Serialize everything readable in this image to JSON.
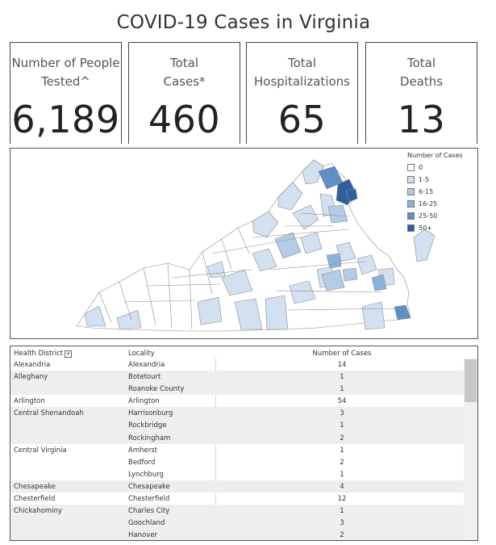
{
  "title": "COVID-19 Cases in Virginia",
  "kpis": [
    {
      "label_line1": "Number of People",
      "label_line2": "Tested^",
      "value": "6,189"
    },
    {
      "label_line1": "Total",
      "label_line2": "Cases*",
      "value": "460"
    },
    {
      "label_line1": "Total",
      "label_line2": "Hospitalizations",
      "value": "65"
    },
    {
      "label_line1": "Total",
      "label_line2": "Deaths",
      "value": "13"
    }
  ],
  "legend": {
    "title": "Number of Cases",
    "items": [
      {
        "label": "0",
        "color": "#ffffff"
      },
      {
        "label": "1-5",
        "color": "#d2e0f0"
      },
      {
        "label": "6-15",
        "color": "#b2cce6"
      },
      {
        "label": "16-25",
        "color": "#8ab2d8"
      },
      {
        "label": "25-50",
        "color": "#5f8fc4"
      },
      {
        "label": "50+",
        "color": "#2f5f9f"
      }
    ]
  },
  "table": {
    "headers": {
      "district": "Health District",
      "locality": "Locality",
      "cases": "Number of Cases"
    },
    "rows": [
      {
        "district": "Alexandria",
        "locality": "Alexandria",
        "cases": "14"
      },
      {
        "district": "Alleghany",
        "locality": "Botetourt",
        "cases": "1"
      },
      {
        "district": "",
        "locality": "Roanoke County",
        "cases": "1"
      },
      {
        "district": "Arlington",
        "locality": "Arlington",
        "cases": "54"
      },
      {
        "district": "Central Shenandoah",
        "locality": "Harrisonburg",
        "cases": "3"
      },
      {
        "district": "",
        "locality": "Rockbridge",
        "cases": "1"
      },
      {
        "district": "",
        "locality": "Rockingham",
        "cases": "2"
      },
      {
        "district": "Central Virginia",
        "locality": "Amherst",
        "cases": "1"
      },
      {
        "district": "",
        "locality": "Bedford",
        "cases": "2"
      },
      {
        "district": "",
        "locality": "Lynchburg",
        "cases": "1"
      },
      {
        "district": "Chesapeake",
        "locality": "Chesapeake",
        "cases": "4"
      },
      {
        "district": "Chesterfield",
        "locality": "Chesterfield",
        "cases": "12"
      },
      {
        "district": "Chickahominy",
        "locality": "Charles City",
        "cases": "1"
      },
      {
        "district": "",
        "locality": "Goochland",
        "cases": "3"
      },
      {
        "district": "",
        "locality": "Hanover",
        "cases": "2"
      }
    ]
  }
}
